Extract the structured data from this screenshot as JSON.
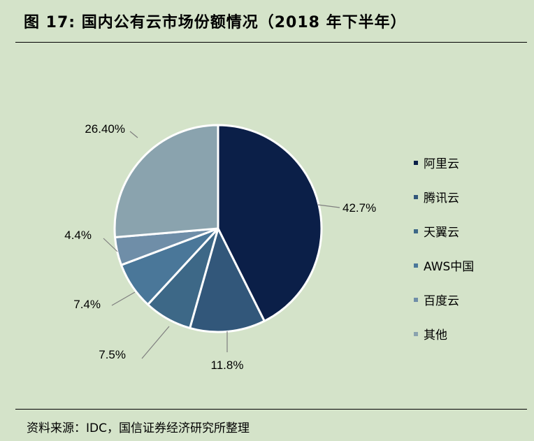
{
  "title": "图 17:  国内公有云市场份额情况（2018 年下半年）",
  "source": "资料来源：IDC，国信证券经济研究所整理",
  "chart_data": {
    "type": "pie",
    "title": "",
    "slices": [
      {
        "name": "阿里云",
        "value": 42.7,
        "label": "42.7%",
        "color": "#0b1f48"
      },
      {
        "name": "腾讯云",
        "value": 11.8,
        "label": "11.8%",
        "color": "#32577a"
      },
      {
        "name": "天翼云",
        "value": 7.5,
        "label": "7.5%",
        "color": "#3d6887"
      },
      {
        "name": "AWS中国",
        "value": 7.4,
        "label": "7.4%",
        "color": "#4a7799"
      },
      {
        "name": "百度云",
        "value": 4.4,
        "label": "4.4%",
        "color": "#6f8ea8"
      },
      {
        "name": "其他",
        "value": 26.4,
        "label": "26.40%",
        "color": "#8aa3ae"
      }
    ],
    "legend_position": "right"
  }
}
